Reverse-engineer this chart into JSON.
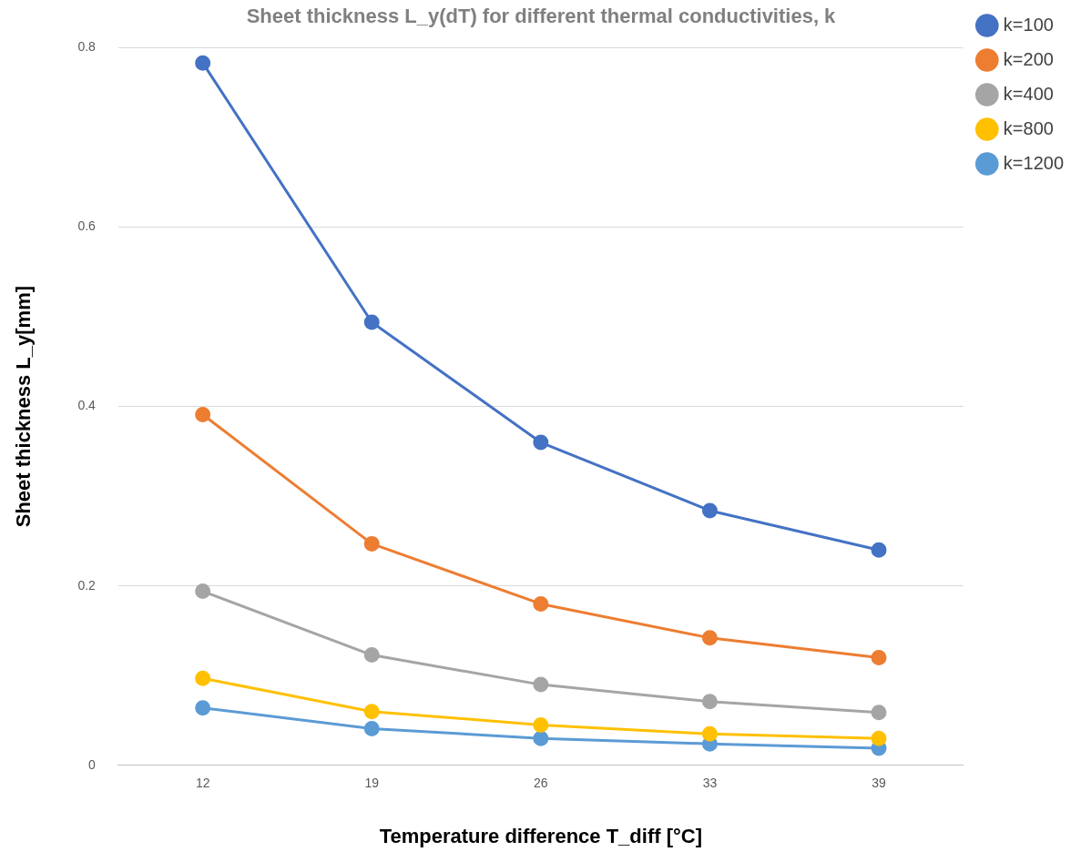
{
  "chart_data": {
    "type": "line",
    "title": "Sheet thickness L_y(dT) for different thermal conductivities, k",
    "xlabel": "Temperature difference T_diff [°C]",
    "ylabel": "Sheet thickness L_y[mm]",
    "categories": [
      "12",
      "19",
      "26",
      "33",
      "39"
    ],
    "series": [
      {
        "name": "k=100",
        "color": "#4472c4",
        "values": [
          0.783,
          0.494,
          0.36,
          0.284,
          0.24
        ]
      },
      {
        "name": "k=200",
        "color": "#ed7d31",
        "values": [
          0.391,
          0.247,
          0.18,
          0.142,
          0.12
        ]
      },
      {
        "name": "k=400",
        "color": "#a5a5a5",
        "values": [
          0.194,
          0.123,
          0.09,
          0.071,
          0.059
        ]
      },
      {
        "name": "k=800",
        "color": "#ffc000",
        "values": [
          0.097,
          0.06,
          0.045,
          0.035,
          0.03
        ]
      },
      {
        "name": "k=1200",
        "color": "#5b9bd5",
        "values": [
          0.064,
          0.041,
          0.03,
          0.024,
          0.019
        ]
      }
    ],
    "ylim": [
      0,
      0.8
    ],
    "yticks": [
      0,
      0.2,
      0.4,
      0.6,
      0.8
    ],
    "grid": "y",
    "legend": "right",
    "marker": "circle",
    "line_style": "solid"
  }
}
